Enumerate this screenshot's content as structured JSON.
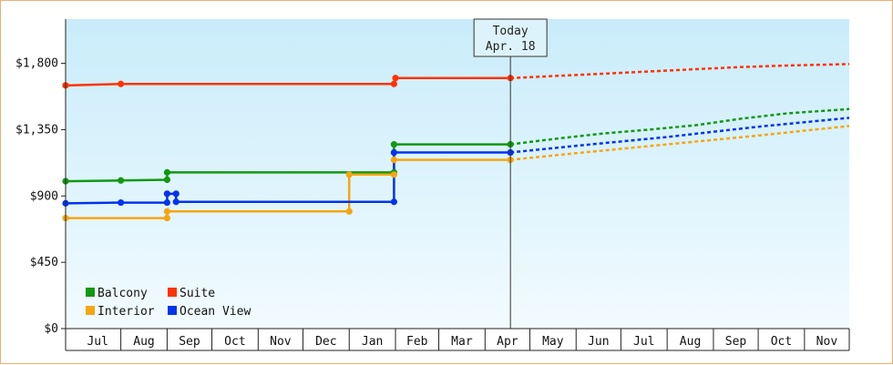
{
  "chart_data": {
    "type": "line",
    "title": "",
    "xlabel": "",
    "ylabel": "",
    "ylim": [
      0,
      2100
    ],
    "yticks": [
      {
        "value": 0,
        "label": "$0"
      },
      {
        "value": 450,
        "label": "$450"
      },
      {
        "value": 900,
        "label": "$900"
      },
      {
        "value": 1350,
        "label": "$1,350"
      },
      {
        "value": 1800,
        "label": "$1,800"
      }
    ],
    "xlim": [
      "2023-06-25",
      "2024-12-01"
    ],
    "x_ticks": [
      {
        "label": "Jul",
        "start": "2023-07-01",
        "end": "2023-08-01"
      },
      {
        "label": "Aug",
        "start": "2023-08-01",
        "end": "2023-09-01"
      },
      {
        "label": "Sep",
        "start": "2023-09-01",
        "end": "2023-10-01"
      },
      {
        "label": "Oct",
        "start": "2023-10-01",
        "end": "2023-11-01"
      },
      {
        "label": "Nov",
        "start": "2023-11-01",
        "end": "2023-12-01"
      },
      {
        "label": "Dec",
        "start": "2023-12-01",
        "end": "2024-01-01"
      },
      {
        "label": "Jan",
        "start": "2024-01-01",
        "end": "2024-02-01"
      },
      {
        "label": "Feb",
        "start": "2024-02-01",
        "end": "2024-03-01"
      },
      {
        "label": "Mar",
        "start": "2024-03-01",
        "end": "2024-04-01"
      },
      {
        "label": "Apr",
        "start": "2024-04-01",
        "end": "2024-05-01"
      },
      {
        "label": "May",
        "start": "2024-05-01",
        "end": "2024-06-01"
      },
      {
        "label": "Jun",
        "start": "2024-06-01",
        "end": "2024-07-01"
      },
      {
        "label": "Jul",
        "start": "2024-07-01",
        "end": "2024-08-01"
      },
      {
        "label": "Aug",
        "start": "2024-08-01",
        "end": "2024-09-01"
      },
      {
        "label": "Sep",
        "start": "2024-09-01",
        "end": "2024-10-01"
      },
      {
        "label": "Oct",
        "start": "2024-10-01",
        "end": "2024-11-01"
      },
      {
        "label": "Nov",
        "start": "2024-11-01",
        "end": "2024-12-01"
      }
    ],
    "today": {
      "line1": "Today",
      "line2": "Apr. 18",
      "date": "2024-04-18"
    },
    "grid": false,
    "legend_position": "bottom-left",
    "series": [
      {
        "name": "Balcony",
        "color": "#119911",
        "style": "step",
        "points": [
          {
            "x": "2023-06-25",
            "y": 1000
          },
          {
            "x": "2023-08-01",
            "y": 1005
          },
          {
            "x": "2023-09-01",
            "y": 1010
          },
          {
            "x": "2023-09-01",
            "y": 1060
          },
          {
            "x": "2024-01-31",
            "y": 1060
          },
          {
            "x": "2024-01-31",
            "y": 1250
          },
          {
            "x": "2024-04-18",
            "y": 1250
          }
        ],
        "forecast": [
          {
            "x": "2024-04-18",
            "y": 1250
          },
          {
            "x": "2024-05-20",
            "y": 1290
          },
          {
            "x": "2024-06-20",
            "y": 1325
          },
          {
            "x": "2024-07-20",
            "y": 1350
          },
          {
            "x": "2024-08-20",
            "y": 1380
          },
          {
            "x": "2024-09-20",
            "y": 1425
          },
          {
            "x": "2024-10-20",
            "y": 1460
          },
          {
            "x": "2024-12-01",
            "y": 1490
          }
        ]
      },
      {
        "name": "Interior",
        "color": "#f5a511",
        "style": "step",
        "points": [
          {
            "x": "2023-06-25",
            "y": 750
          },
          {
            "x": "2023-09-01",
            "y": 750
          },
          {
            "x": "2023-09-01",
            "y": 795
          },
          {
            "x": "2024-01-01",
            "y": 795
          },
          {
            "x": "2024-01-01",
            "y": 1045
          },
          {
            "x": "2024-01-31",
            "y": 1045
          },
          {
            "x": "2024-01-31",
            "y": 1145
          },
          {
            "x": "2024-04-18",
            "y": 1145
          }
        ],
        "forecast": [
          {
            "x": "2024-04-18",
            "y": 1145
          },
          {
            "x": "2024-06-01",
            "y": 1190
          },
          {
            "x": "2024-08-01",
            "y": 1250
          },
          {
            "x": "2024-10-01",
            "y": 1310
          },
          {
            "x": "2024-12-01",
            "y": 1375
          }
        ]
      },
      {
        "name": "Suite",
        "color": "#ff3300",
        "style": "step",
        "points": [
          {
            "x": "2023-06-25",
            "y": 1650
          },
          {
            "x": "2023-08-01",
            "y": 1660
          },
          {
            "x": "2024-01-31",
            "y": 1660
          },
          {
            "x": "2024-02-01",
            "y": 1700
          },
          {
            "x": "2024-04-18",
            "y": 1700
          }
        ],
        "forecast": [
          {
            "x": "2024-04-18",
            "y": 1700
          },
          {
            "x": "2024-05-20",
            "y": 1715
          },
          {
            "x": "2024-06-20",
            "y": 1730
          },
          {
            "x": "2024-07-20",
            "y": 1745
          },
          {
            "x": "2024-08-20",
            "y": 1760
          },
          {
            "x": "2024-09-20",
            "y": 1775
          },
          {
            "x": "2024-10-20",
            "y": 1785
          },
          {
            "x": "2024-12-01",
            "y": 1795
          }
        ]
      },
      {
        "name": "Ocean View",
        "color": "#0033ee",
        "style": "step",
        "points": [
          {
            "x": "2023-06-25",
            "y": 850
          },
          {
            "x": "2023-08-01",
            "y": 855
          },
          {
            "x": "2023-09-01",
            "y": 855
          },
          {
            "x": "2023-09-01",
            "y": 915
          },
          {
            "x": "2023-09-07",
            "y": 915
          },
          {
            "x": "2023-09-07",
            "y": 860
          },
          {
            "x": "2024-01-31",
            "y": 860
          },
          {
            "x": "2024-01-31",
            "y": 1195
          },
          {
            "x": "2024-04-18",
            "y": 1195
          }
        ],
        "forecast": [
          {
            "x": "2024-04-18",
            "y": 1195
          },
          {
            "x": "2024-06-01",
            "y": 1240
          },
          {
            "x": "2024-08-01",
            "y": 1300
          },
          {
            "x": "2024-10-01",
            "y": 1370
          },
          {
            "x": "2024-12-01",
            "y": 1430
          }
        ]
      }
    ],
    "markers": {
      "Balcony": [
        {
          "x": "2023-06-25",
          "y": 1000
        },
        {
          "x": "2023-08-01",
          "y": 1005
        },
        {
          "x": "2023-09-01",
          "y": 1010
        },
        {
          "x": "2023-09-01",
          "y": 1060
        },
        {
          "x": "2024-01-31",
          "y": 1060
        },
        {
          "x": "2024-01-31",
          "y": 1250
        },
        {
          "x": "2024-04-18",
          "y": 1250
        }
      ],
      "Interior": [
        {
          "x": "2023-06-25",
          "y": 750
        },
        {
          "x": "2023-09-01",
          "y": 750
        },
        {
          "x": "2023-09-01",
          "y": 795
        },
        {
          "x": "2024-01-01",
          "y": 795
        },
        {
          "x": "2024-01-01",
          "y": 1045
        },
        {
          "x": "2024-01-31",
          "y": 1045
        },
        {
          "x": "2024-01-31",
          "y": 1145
        },
        {
          "x": "2024-04-18",
          "y": 1145
        }
      ],
      "Suite": [
        {
          "x": "2023-06-25",
          "y": 1650
        },
        {
          "x": "2023-08-01",
          "y": 1660
        },
        {
          "x": "2024-01-31",
          "y": 1660
        },
        {
          "x": "2024-02-01",
          "y": 1700
        },
        {
          "x": "2024-04-18",
          "y": 1700
        }
      ],
      "Ocean View": [
        {
          "x": "2023-06-25",
          "y": 850
        },
        {
          "x": "2023-08-01",
          "y": 855
        },
        {
          "x": "2023-09-01",
          "y": 855
        },
        {
          "x": "2023-09-01",
          "y": 915
        },
        {
          "x": "2023-09-07",
          "y": 915
        },
        {
          "x": "2023-09-07",
          "y": 860
        },
        {
          "x": "2024-01-31",
          "y": 860
        },
        {
          "x": "2024-01-31",
          "y": 1195
        },
        {
          "x": "2024-04-18",
          "y": 1195
        }
      ]
    },
    "legend": [
      {
        "name": "Balcony",
        "color": "#119911"
      },
      {
        "name": "Suite",
        "color": "#ff3300"
      },
      {
        "name": "Interior",
        "color": "#f5a511"
      },
      {
        "name": "Ocean View",
        "color": "#0033ee"
      }
    ],
    "colors": {
      "background_top": "#c9ecfa",
      "background_bottom": "#f2fbff",
      "axis": "#222222",
      "frame_border": "#e8b070",
      "today_line": "#333333",
      "today_box": "#ddf3fb"
    }
  }
}
